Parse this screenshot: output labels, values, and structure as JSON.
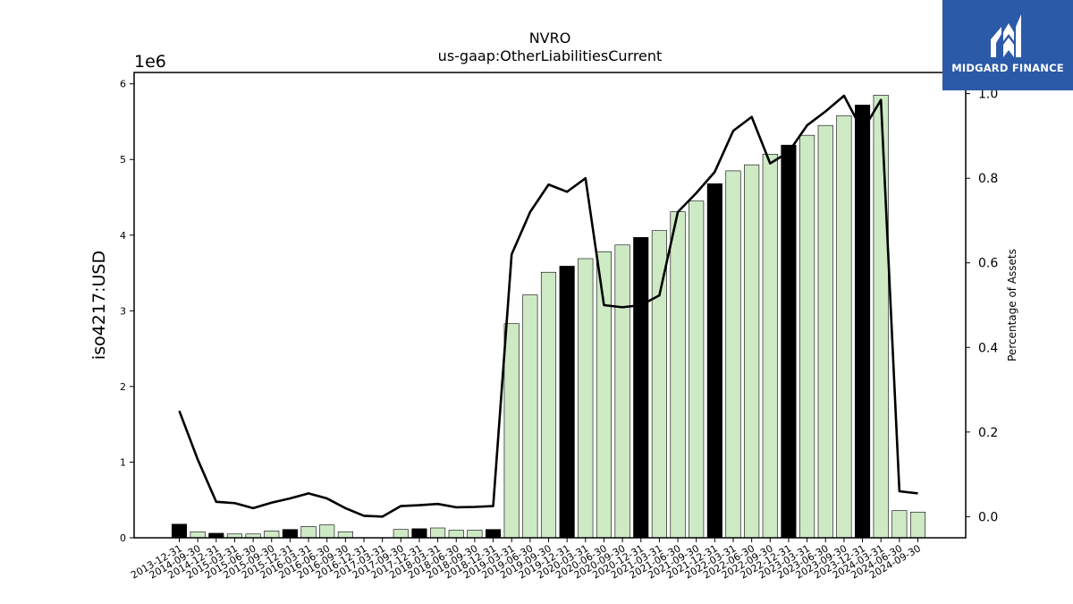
{
  "chart_data": {
    "type": "bar",
    "title": "NVRO",
    "subtitle": "us-gaap:OtherLiabilitiesCurrent",
    "ylabel": "iso4217:USD",
    "y_offset_text": "1e6",
    "y2label": "Percentage of Assets",
    "ylim": [
      0,
      6150000
    ],
    "y2lim": [
      -0.05,
      1.05
    ],
    "yticks": [
      "0",
      "1",
      "2",
      "3",
      "4",
      "5",
      "6"
    ],
    "y2ticks": [
      "0.0",
      "0.2",
      "0.4",
      "0.6",
      "0.8",
      "1.0"
    ],
    "categories": [
      "2013-12-31",
      "2014-09-30",
      "2014-12-31",
      "2015-03-31",
      "2015-06-30",
      "2015-09-30",
      "2015-12-31",
      "2016-03-31",
      "2016-06-30",
      "2016-09-30",
      "2016-12-31",
      "2017-03-31",
      "2017-09-30",
      "2017-12-31",
      "2018-03-31",
      "2018-06-30",
      "2018-09-30",
      "2018-12-31",
      "2019-03-31",
      "2019-06-30",
      "2019-09-30",
      "2019-12-31",
      "2020-03-31",
      "2020-06-30",
      "2020-09-30",
      "2020-12-31",
      "2021-03-31",
      "2021-06-30",
      "2021-09-30",
      "2021-12-31",
      "2022-03-31",
      "2022-06-30",
      "2022-09-30",
      "2022-12-31",
      "2023-03-31",
      "2023-06-30",
      "2023-09-30",
      "2023-12-31",
      "2024-03-31",
      "2024-06-30",
      "2024-09-30"
    ],
    "series": [
      {
        "type": "bar",
        "values": [
          180000,
          80000,
          60000,
          50000,
          50000,
          90000,
          110000,
          150000,
          170000,
          80000,
          0,
          0,
          110000,
          120000,
          130000,
          100000,
          100000,
          110000,
          2830000,
          3210000,
          3510000,
          3590000,
          3690000,
          3780000,
          3870000,
          3970000,
          4060000,
          4310000,
          4450000,
          4680000,
          4850000,
          4930000,
          5070000,
          5190000,
          5320000,
          5450000,
          5580000,
          5720000,
          5850000,
          360000,
          340000
        ],
        "year_end": [
          true,
          false,
          true,
          false,
          false,
          false,
          true,
          false,
          false,
          false,
          true,
          false,
          false,
          true,
          false,
          false,
          false,
          true,
          false,
          false,
          false,
          true,
          false,
          false,
          false,
          true,
          false,
          false,
          false,
          true,
          false,
          false,
          false,
          true,
          false,
          false,
          false,
          true,
          false,
          false,
          false
        ]
      },
      {
        "type": "line",
        "axis": "right",
        "values": [
          0.25,
          0.135,
          0.035,
          0.032,
          0.02,
          0.033,
          0.043,
          0.055,
          0.043,
          0.02,
          0.002,
          0,
          0.025,
          0.027,
          0.03,
          0.022,
          0.023,
          0.025,
          0.62,
          0.72,
          0.785,
          0.768,
          0.8,
          0.5,
          0.495,
          0.5,
          0.523,
          0.72,
          0.765,
          0.815,
          0.912,
          0.945,
          0.835,
          0.862,
          0.925,
          0.958,
          0.995,
          0.912,
          0.985,
          0.06,
          0.055
        ]
      }
    ],
    "colors": {
      "bar_regular": "#cdeac5",
      "bar_year_end": "#000000",
      "line": "#000000"
    }
  },
  "logo": {
    "text": "MIDGARD FINANCE"
  }
}
